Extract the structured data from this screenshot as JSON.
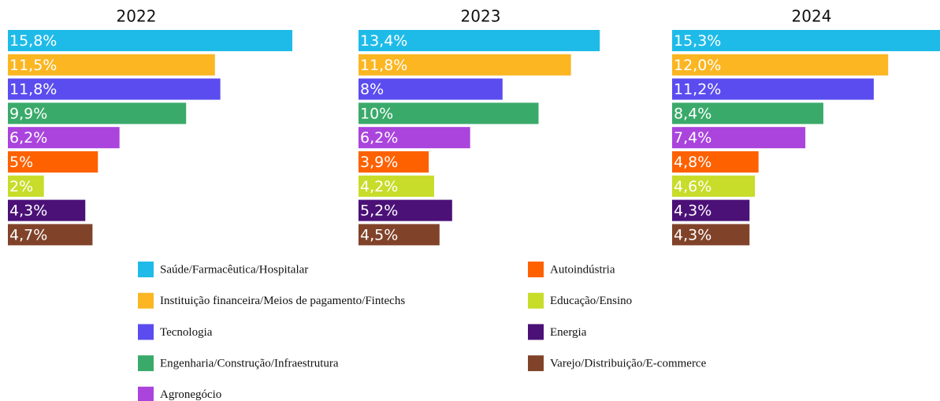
{
  "chart_data": {
    "type": "bar",
    "categories": [
      "Saúde/Farmacêutica/Hospitalar",
      "Instituição financeira/Meios de pagamento/Fintechs",
      "Tecnologia",
      "Engenharia/Construção/Infraestrutura",
      "Agronegócio",
      "Autoindústria",
      "Educação/Ensino",
      "Energia",
      "Varejo/Distribuição/E-commerce"
    ],
    "colors": [
      "#1fbbe8",
      "#fbb622",
      "#5b4cf0",
      "#3aaa6a",
      "#aa44dd",
      "#fe6100",
      "#c8dc2a",
      "#4b1177",
      "#80432a"
    ],
    "series": [
      {
        "name": "2022",
        "values": [
          15.8,
          11.5,
          11.8,
          9.9,
          6.2,
          5,
          2,
          4.3,
          4.7
        ],
        "value_labels": [
          "15,8%",
          "11,5%",
          "11,8%",
          "9,9%",
          "6,2%",
          "5%",
          "2%",
          "4,3%",
          "4,7%"
        ]
      },
      {
        "name": "2023",
        "values": [
          13.4,
          11.8,
          8,
          10,
          6.2,
          3.9,
          4.2,
          5.2,
          4.5
        ],
        "value_labels": [
          "13,4%",
          "11,8%",
          "8%",
          "10%",
          "6,2%",
          "3,9%",
          "4,2%",
          "5,2%",
          "4,5%"
        ]
      },
      {
        "name": "2024",
        "values": [
          15.3,
          12.0,
          11.2,
          8.4,
          7.4,
          4.8,
          4.6,
          4.3,
          4.3
        ],
        "value_labels": [
          "15,3%",
          "12,0%",
          "11,2%",
          "8,4%",
          "7,4%",
          "4,8%",
          "4,6%",
          "4,3%",
          "4,3%"
        ]
      }
    ]
  }
}
